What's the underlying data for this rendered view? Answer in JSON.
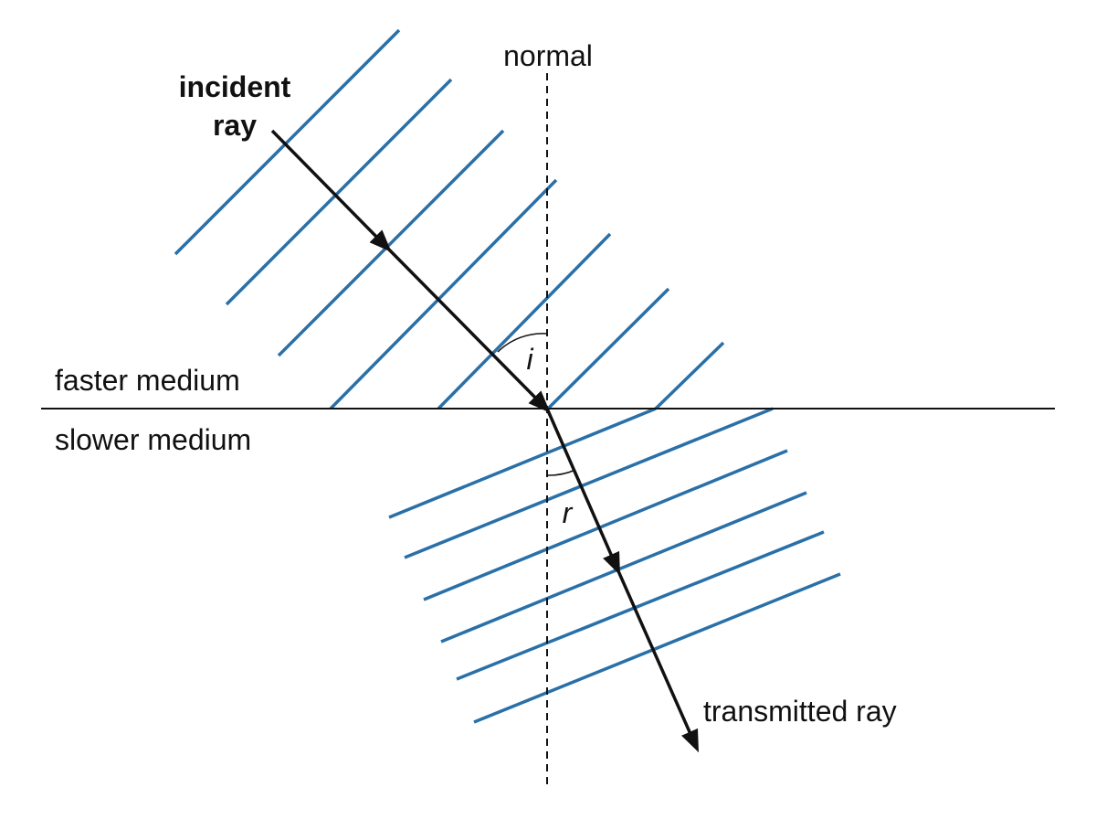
{
  "labels": {
    "normal": "normal",
    "incident_ray": "incident ray",
    "faster_medium": "faster medium",
    "slower_medium": "slower medium",
    "angle_incidence": "i",
    "angle_refraction": "r",
    "transmitted_ray": "transmitted ray"
  }
}
